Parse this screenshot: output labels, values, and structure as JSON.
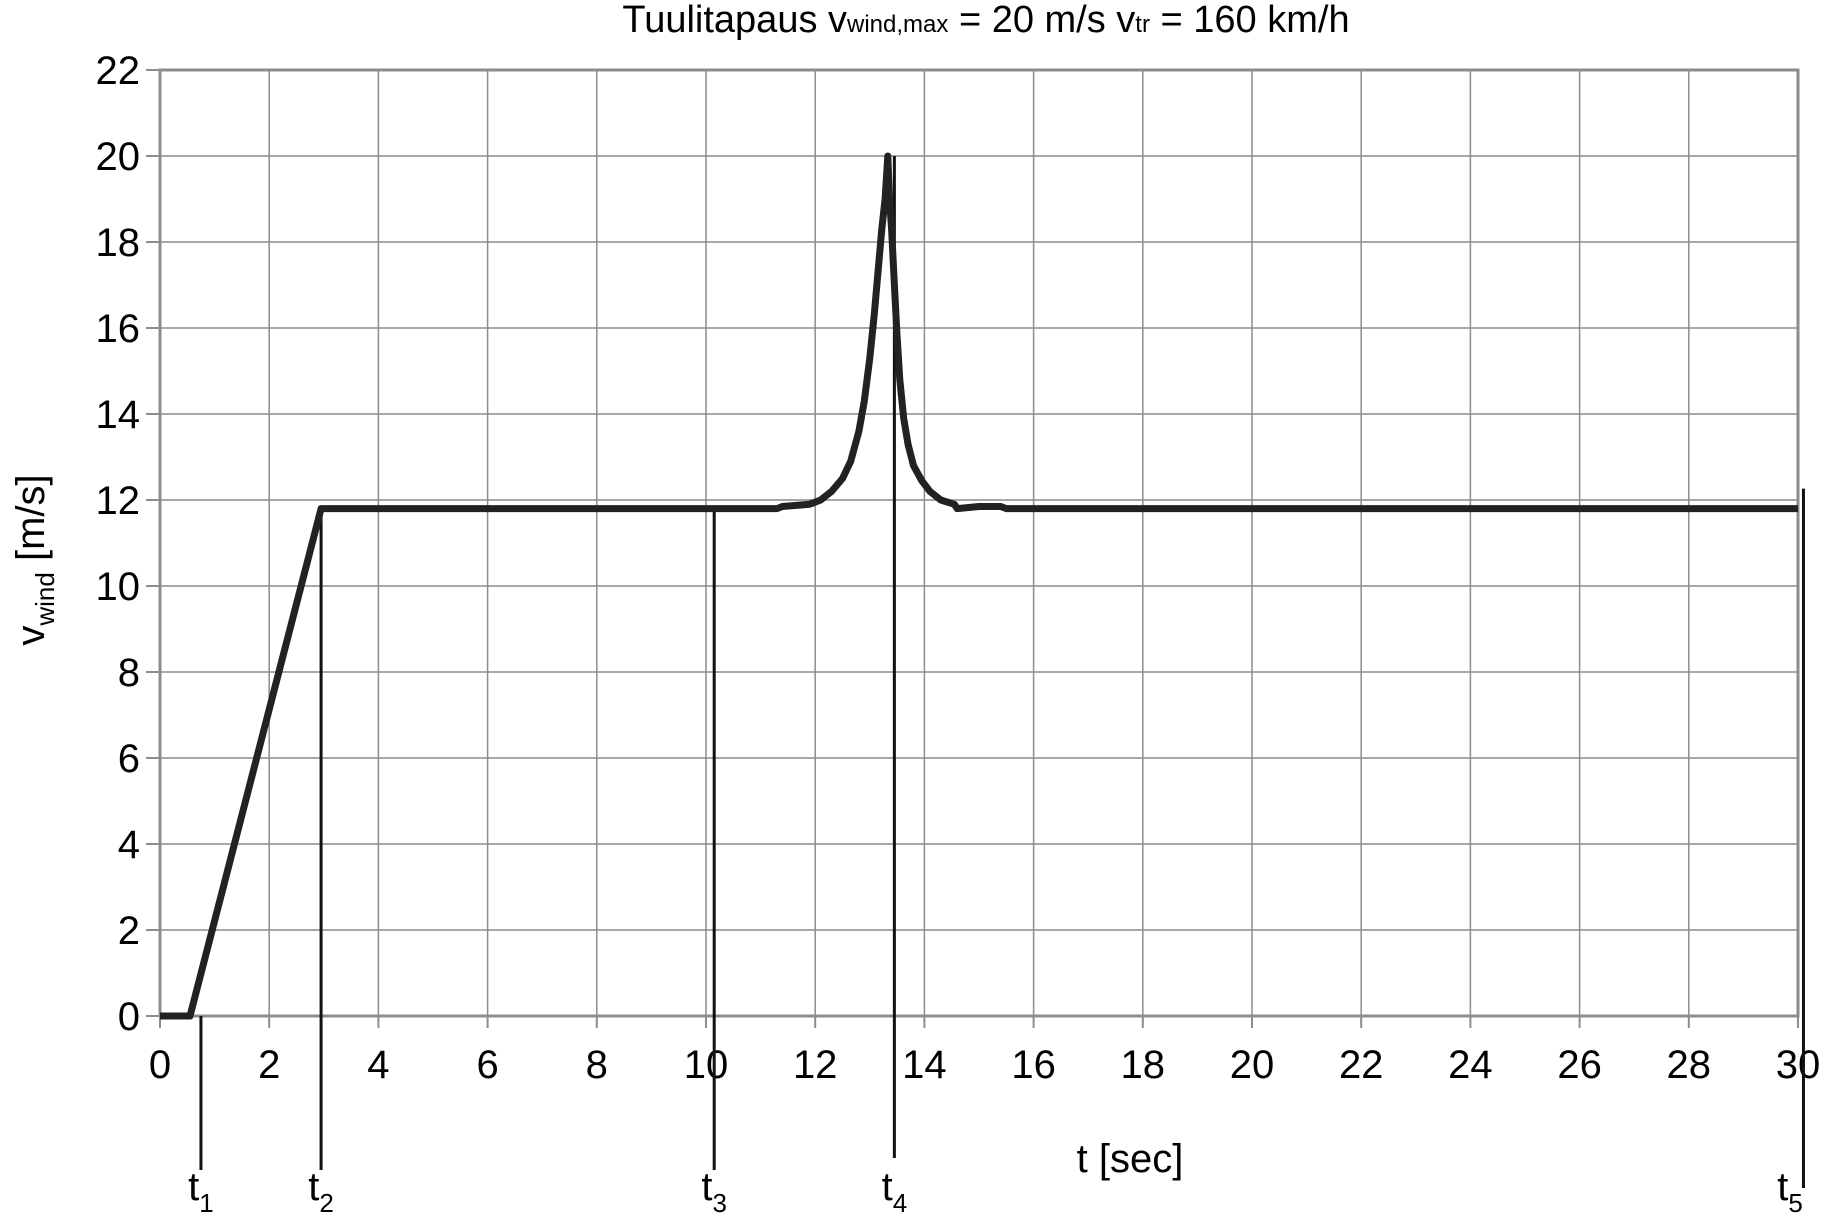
{
  "chart_data": {
    "type": "line",
    "title": {
      "prefix": "Tuulitapaus v",
      "sub1": "wind,max",
      "middle": " = 20 m/s v",
      "sub2": "tr",
      "suffix": " = 160 km/h"
    },
    "xlabel": "t [sec]",
    "ylabel": {
      "main": "v",
      "sub": "wind",
      "unit": " [m/s]"
    },
    "xlim": [
      0,
      30
    ],
    "ylim": [
      0,
      22
    ],
    "xticks": [
      0,
      2,
      4,
      6,
      8,
      10,
      12,
      14,
      16,
      18,
      20,
      22,
      24,
      26,
      28,
      30
    ],
    "yticks": [
      0,
      2,
      4,
      6,
      8,
      10,
      12,
      14,
      16,
      18,
      20,
      22
    ],
    "grid": true,
    "legend": "none",
    "colors": {
      "line": "#222222",
      "grid": "#8c8c8c",
      "frame": "#8c8c8c",
      "marker": "#111111"
    },
    "series": [
      {
        "x": [
          0,
          0.5,
          0.55,
          2.95,
          3.0,
          11.3,
          11.4,
          11.9,
          12.1,
          12.3,
          12.5,
          12.65,
          12.8,
          12.9,
          13.0,
          13.08,
          13.15,
          13.22,
          13.28,
          13.33,
          13.36,
          13.4,
          13.45,
          13.5,
          13.55,
          13.62,
          13.7,
          13.8,
          13.95,
          14.1,
          14.3,
          14.55,
          14.6,
          15.0,
          15.4,
          15.5,
          30
        ],
        "y": [
          0,
          0,
          0,
          11.8,
          11.8,
          11.8,
          11.85,
          11.9,
          12.0,
          12.2,
          12.5,
          12.9,
          13.6,
          14.3,
          15.3,
          16.3,
          17.3,
          18.3,
          19.0,
          20.0,
          19.0,
          18.3,
          17.0,
          15.8,
          14.8,
          13.9,
          13.3,
          12.8,
          12.45,
          12.2,
          12.0,
          11.9,
          11.8,
          11.85,
          11.85,
          11.8,
          11.8
        ]
      }
    ],
    "markers": [
      {
        "label": "t",
        "sub": "1",
        "x": 0.75
      },
      {
        "label": "t",
        "sub": "2",
        "x": 2.95
      },
      {
        "label": "t",
        "sub": "3",
        "x": 10.15
      },
      {
        "label": "t",
        "sub": "4",
        "x": 13.45
      },
      {
        "label": "t",
        "sub": "5",
        "x": 30.1
      }
    ]
  }
}
